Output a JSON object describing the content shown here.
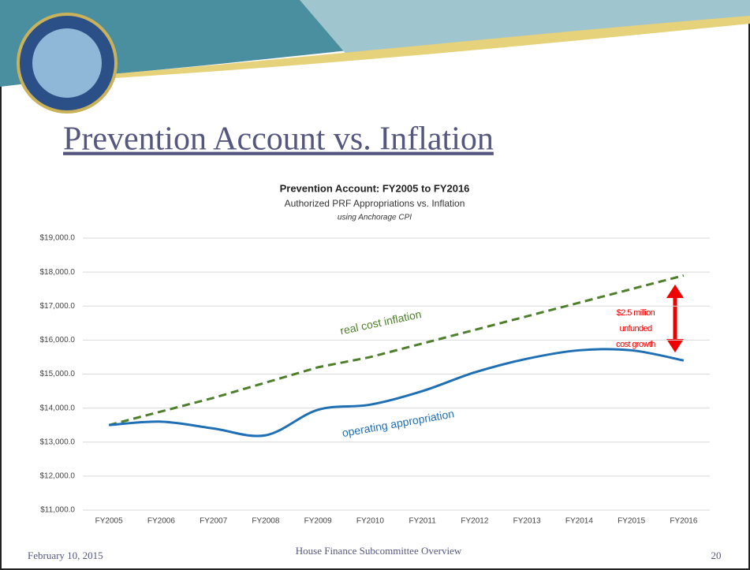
{
  "slide": {
    "title": "Prevention Account vs. Inflation",
    "footer_date": "February 10, 2015",
    "footer_center": "House Finance Subcommittee Overview",
    "page_number": "20"
  },
  "chart_data": {
    "type": "line",
    "title": "Prevention Account: FY2005 to FY2016",
    "subtitle": "Authorized PRF Appropriations vs. Inflation",
    "note": "using Anchorage CPI",
    "categories": [
      "FY2005",
      "FY2006",
      "FY2007",
      "FY2008",
      "FY2009",
      "FY2010",
      "FY2011",
      "FY2012",
      "FY2013",
      "FY2014",
      "FY2015",
      "FY2016"
    ],
    "series": [
      {
        "name": "real cost inflation",
        "color": "#4f7f2c",
        "dashed": true,
        "smooth": false,
        "values": [
          13500,
          13900,
          14300,
          14750,
          15200,
          15500,
          15900,
          16300,
          16700,
          17100,
          17500,
          17900
        ]
      },
      {
        "name": "operating appropriation",
        "color": "#1f6fb4",
        "dashed": false,
        "smooth": true,
        "values": [
          13500,
          13600,
          13400,
          13200,
          13950,
          14100,
          14500,
          15050,
          15450,
          15700,
          15700,
          15400
        ]
      }
    ],
    "ylim": [
      11000,
      19000
    ],
    "yticks": [
      {
        "value": 11000,
        "label": "$11,000.0"
      },
      {
        "value": 12000,
        "label": "$12,000.0"
      },
      {
        "value": 13000,
        "label": "$13,000.0"
      },
      {
        "value": 14000,
        "label": "$14,000.0"
      },
      {
        "value": 15000,
        "label": "$15,000.0"
      },
      {
        "value": 16000,
        "label": "$16,000.0"
      },
      {
        "value": 17000,
        "label": "$17,000.0"
      },
      {
        "value": 18000,
        "label": "$18,000.0"
      },
      {
        "value": 19000,
        "label": "$19,000.0"
      }
    ],
    "grid": true,
    "annotation_lines": [
      "$2.5 million",
      "unfunded",
      "cost growth"
    ]
  }
}
